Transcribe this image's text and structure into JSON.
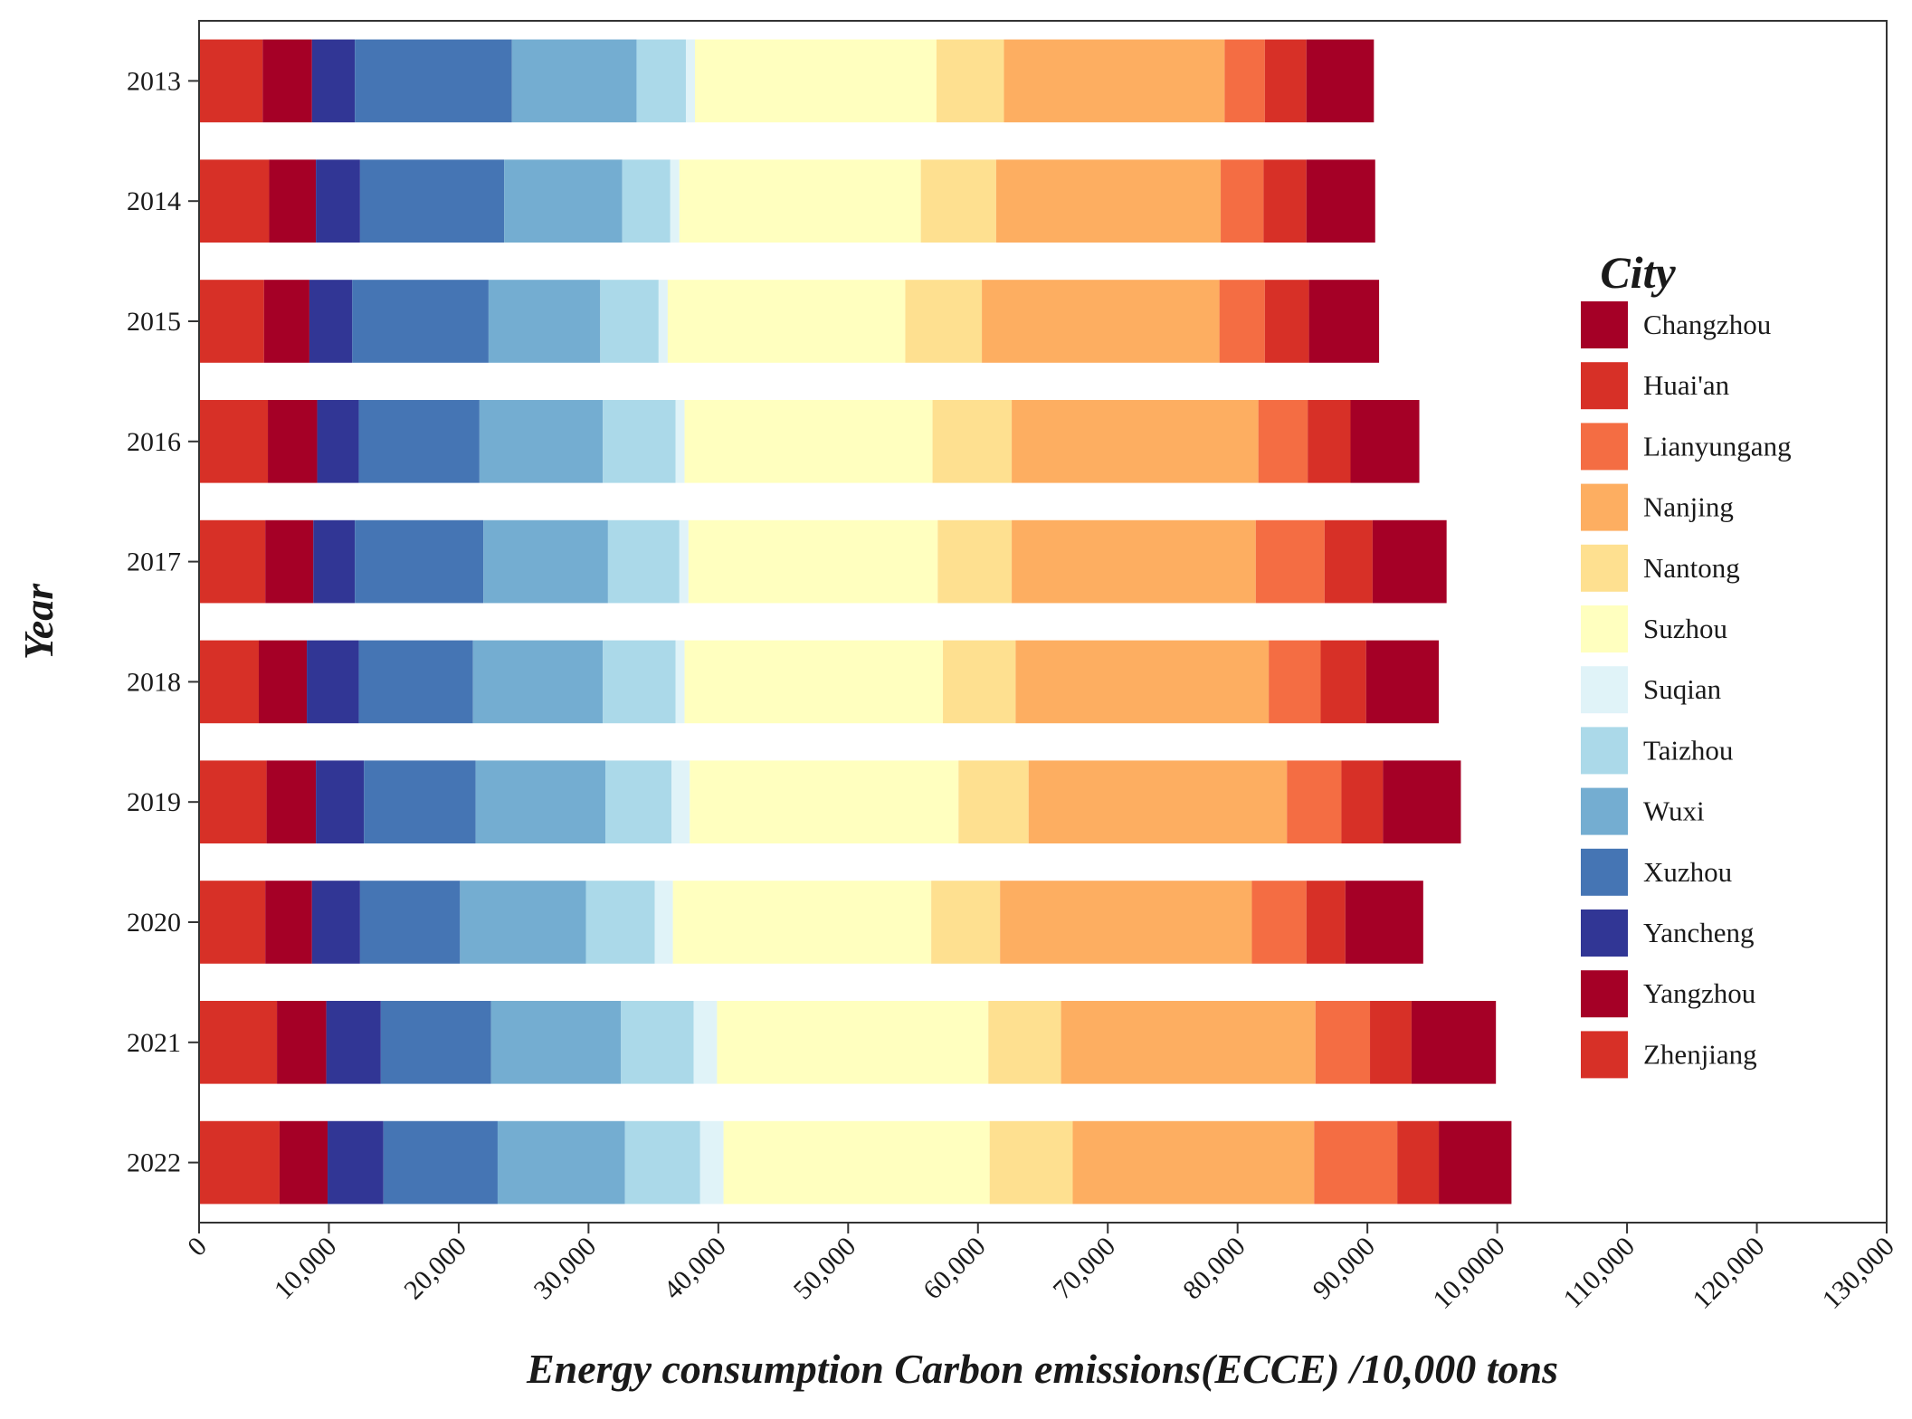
{
  "chart_data": {
    "type": "bar",
    "orientation": "horizontal",
    "stacked": true,
    "title": "",
    "xlabel": "Energy consumption Carbon emissions(ECCE) /10,000 tons",
    "ylabel": "Year",
    "xlim": [
      0,
      130000
    ],
    "x_ticks": [
      0,
      10000,
      20000,
      30000,
      40000,
      50000,
      60000,
      70000,
      80000,
      90000,
      100000,
      110000,
      120000,
      130000
    ],
    "x_tick_labels": [
      "0",
      "10,000",
      "20,000",
      "30,000",
      "40,000",
      "50,000",
      "60,000",
      "70,000",
      "80,000",
      "90,000",
      "10,0000",
      "110,000",
      "120,000",
      "130,000"
    ],
    "categories": [
      "2013",
      "2014",
      "2015",
      "2016",
      "2017",
      "2018",
      "2019",
      "2020",
      "2021",
      "2022"
    ],
    "legend": {
      "title": "City",
      "placement": "right",
      "entries": [
        "Changzhou",
        "Huai'an",
        "Lianyungang",
        "Nanjing",
        "Nantong",
        "Suzhou",
        "Suqian",
        "Taizhou",
        "Wuxi",
        "Xuzhou",
        "Yancheng",
        "Yangzhou",
        "Zhenjiang"
      ]
    },
    "series": [
      {
        "name": "Zhenjiang",
        "color": "#d73027",
        "values": [
          4900,
          5400,
          5000,
          5300,
          5100,
          4600,
          5200,
          5100,
          6000,
          6200
        ]
      },
      {
        "name": "Yangzhou",
        "color": "#a50026",
        "values": [
          3800,
          3600,
          3500,
          3800,
          3700,
          3700,
          3800,
          3600,
          3800,
          3700
        ]
      },
      {
        "name": "Yancheng",
        "color": "#313695",
        "values": [
          3300,
          3400,
          3300,
          3200,
          3200,
          4000,
          3700,
          3700,
          4200,
          4300
        ]
      },
      {
        "name": "Xuzhou",
        "color": "#4575b4",
        "values": [
          12100,
          11100,
          10500,
          9300,
          9900,
          8800,
          8600,
          7700,
          8500,
          8800
        ]
      },
      {
        "name": "Wuxi",
        "color": "#74add1",
        "values": [
          9600,
          9100,
          8600,
          9500,
          9600,
          10000,
          10000,
          9700,
          10000,
          9800
        ]
      },
      {
        "name": "Taizhou",
        "color": "#abd9e9",
        "values": [
          3800,
          3700,
          4500,
          5600,
          5500,
          5600,
          5100,
          5300,
          5600,
          5800
        ]
      },
      {
        "name": "Suqian",
        "color": "#e0f3f8",
        "values": [
          700,
          700,
          700,
          700,
          700,
          700,
          1400,
          1400,
          1800,
          1800
        ]
      },
      {
        "name": "Suzhou",
        "color": "#ffffbf",
        "values": [
          18600,
          18600,
          18300,
          19100,
          19200,
          19900,
          20700,
          19900,
          20900,
          20500
        ]
      },
      {
        "name": "Nantong",
        "color": "#fee090",
        "values": [
          5200,
          5800,
          5900,
          6100,
          5700,
          5600,
          5400,
          5300,
          5600,
          6400
        ]
      },
      {
        "name": "Nanjing",
        "color": "#fdae61",
        "values": [
          17000,
          17300,
          18300,
          19000,
          18800,
          19500,
          19900,
          19400,
          19600,
          18600
        ]
      },
      {
        "name": "Lianyungang",
        "color": "#f46d43",
        "values": [
          3100,
          3300,
          3500,
          3800,
          5300,
          4000,
          4200,
          4200,
          4200,
          6400
        ]
      },
      {
        "name": "Huai'an",
        "color": "#d73027",
        "values": [
          3200,
          3300,
          3400,
          3300,
          3700,
          3500,
          3200,
          3000,
          3200,
          3200
        ]
      },
      {
        "name": "Changzhou",
        "color": "#a50026",
        "values": [
          5200,
          5300,
          5400,
          5300,
          5700,
          5600,
          6000,
          6000,
          6500,
          5600
        ]
      }
    ]
  }
}
